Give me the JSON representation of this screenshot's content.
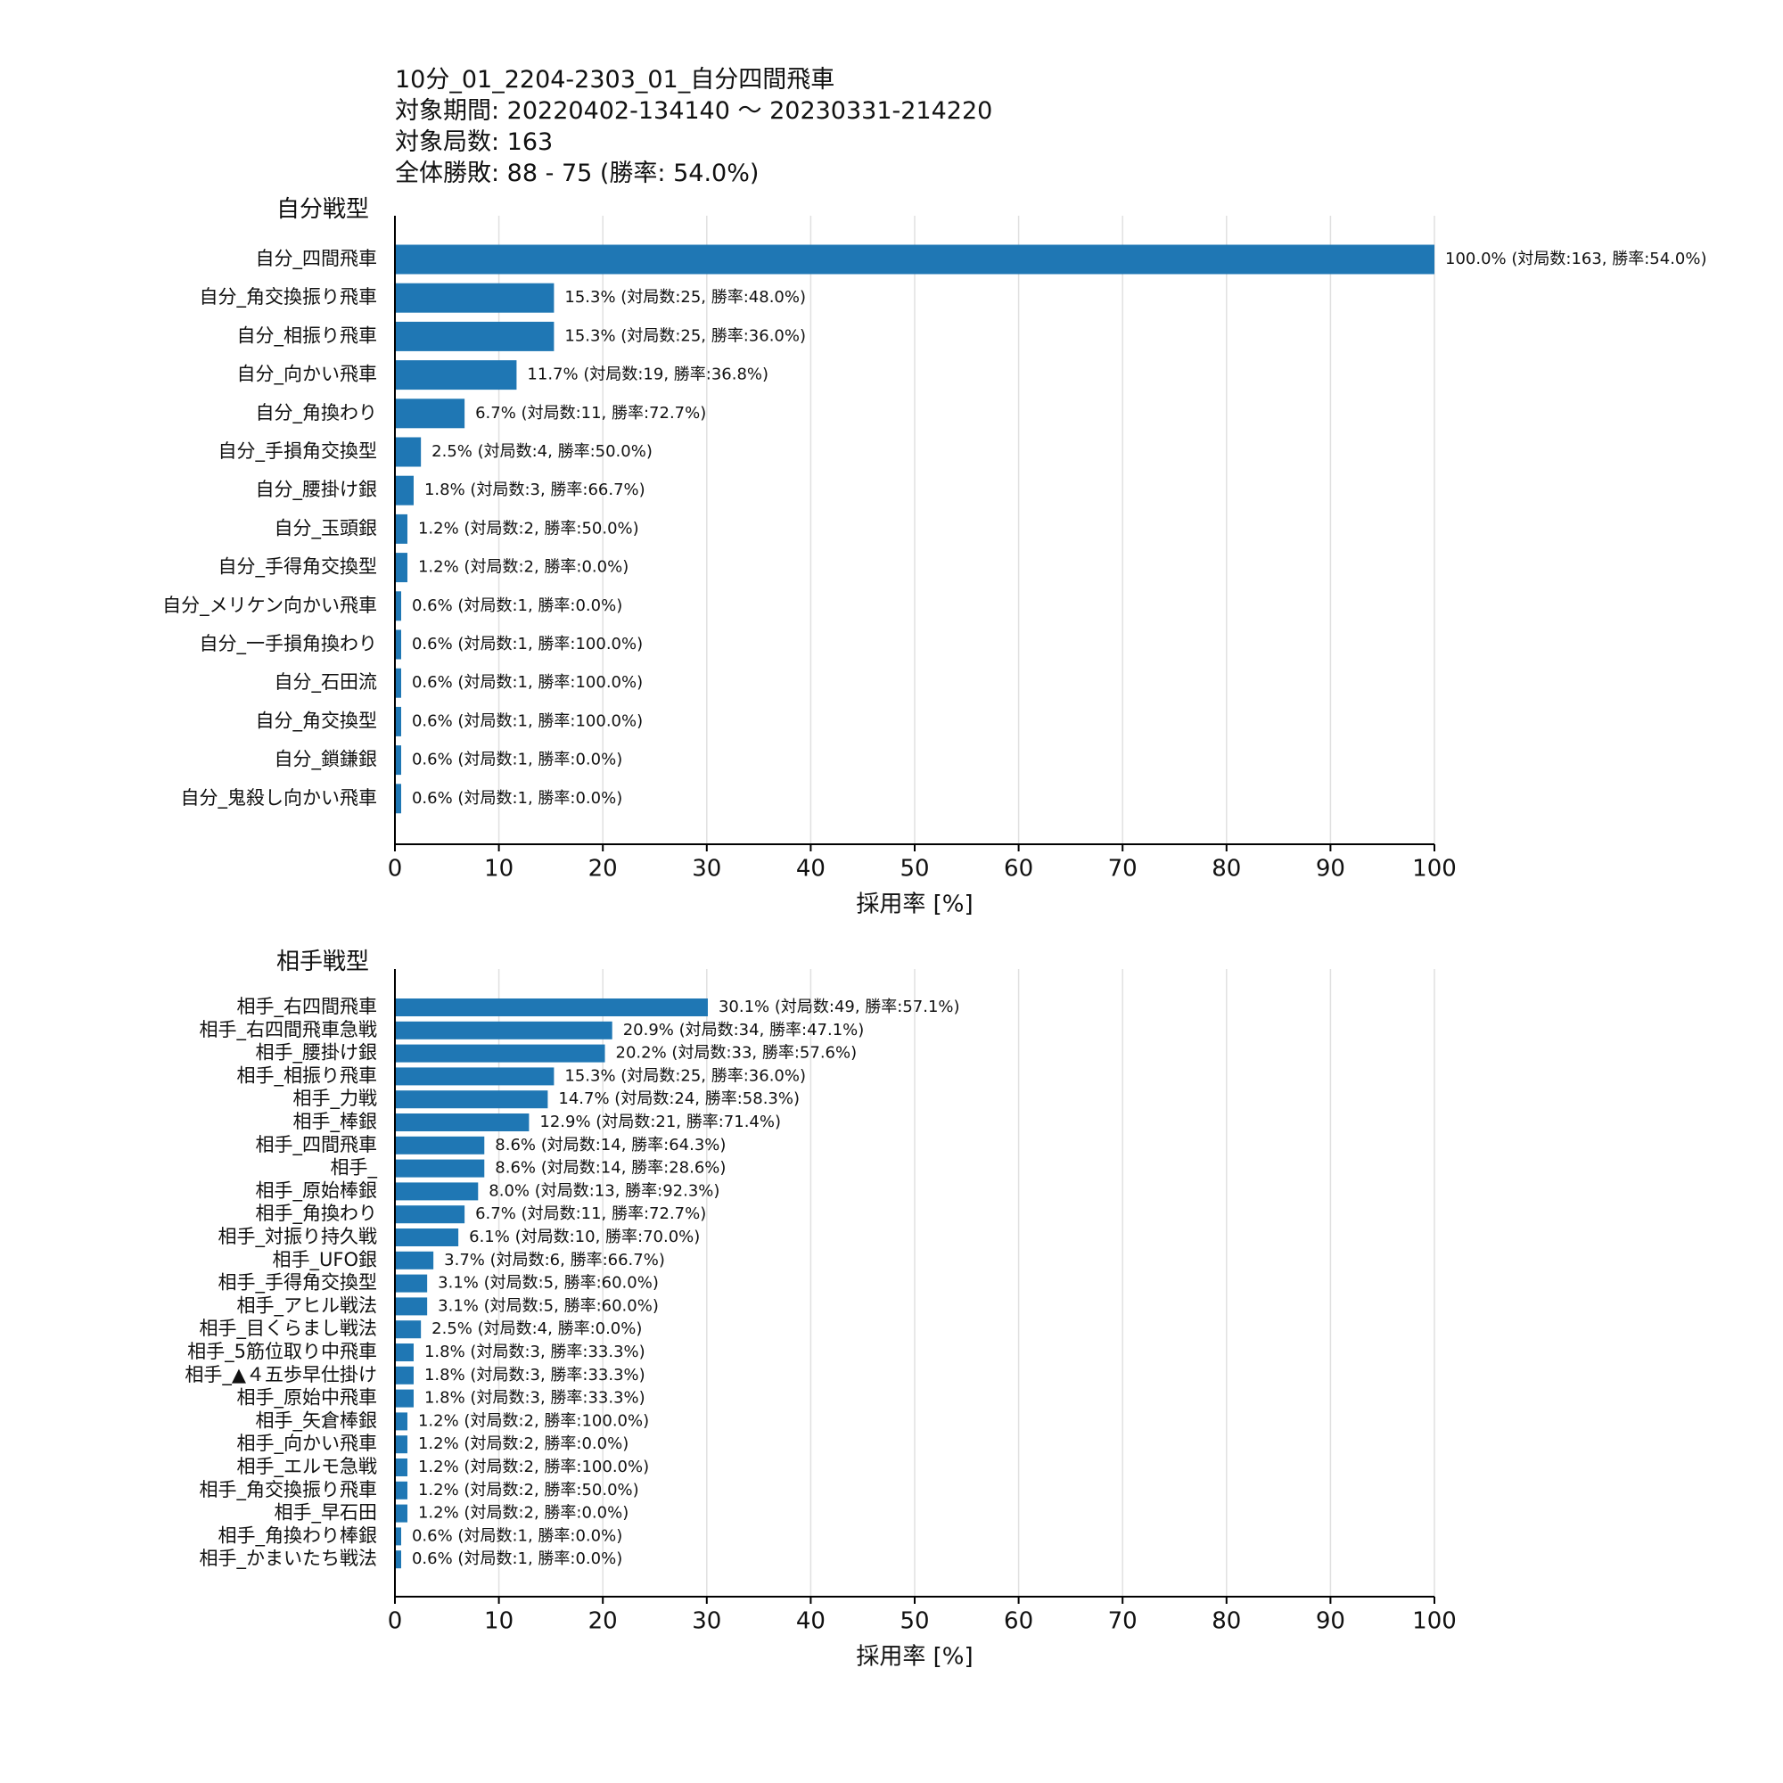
{
  "header": {
    "line1": "10分_01_2204-2303_01_自分四間飛車",
    "line2": "対象期間: 20220402-134140 〜 20230331-214220",
    "line3": "対象局数: 163",
    "line4": "全体勝敗: 88 - 75 (勝率: 54.0%)"
  },
  "colors": {
    "bar": "#1f77b4",
    "grid": "#e0e0e0",
    "axis": "#000000"
  },
  "chart_data": [
    {
      "type": "bar",
      "orientation": "horizontal",
      "title": "自分戦型",
      "xlabel": "採用率 [%]",
      "xlim": [
        0,
        100
      ],
      "xticks": [
        0,
        10,
        20,
        30,
        40,
        50,
        60,
        70,
        80,
        90,
        100
      ],
      "grid": "x",
      "categories": [
        "自分_四間飛車",
        "自分_角交換振り飛車",
        "自分_相振り飛車",
        "自分_向かい飛車",
        "自分_角換わり",
        "自分_手損角交換型",
        "自分_腰掛け銀",
        "自分_玉頭銀",
        "自分_手得角交換型",
        "自分_メリケン向かい飛車",
        "自分_一手損角換わり",
        "自分_石田流",
        "自分_角交換型",
        "自分_鎖鎌銀",
        "自分_鬼殺し向かい飛車"
      ],
      "values": [
        100.0,
        15.3,
        15.3,
        11.7,
        6.7,
        2.5,
        1.8,
        1.2,
        1.2,
        0.6,
        0.6,
        0.6,
        0.6,
        0.6,
        0.6
      ],
      "data_labels": [
        "100.0% (対局数:163, 勝率:54.0%)",
        "15.3% (対局数:25, 勝率:48.0%)",
        "15.3% (対局数:25, 勝率:36.0%)",
        "11.7% (対局数:19, 勝率:36.8%)",
        "6.7% (対局数:11, 勝率:72.7%)",
        "2.5% (対局数:4, 勝率:50.0%)",
        "1.8% (対局数:3, 勝率:66.7%)",
        "1.2% (対局数:2, 勝率:50.0%)",
        "1.2% (対局数:2, 勝率:0.0%)",
        "0.6% (対局数:1, 勝率:0.0%)",
        "0.6% (対局数:1, 勝率:100.0%)",
        "0.6% (対局数:1, 勝率:100.0%)",
        "0.6% (対局数:1, 勝率:100.0%)",
        "0.6% (対局数:1, 勝率:0.0%)",
        "0.6% (対局数:1, 勝率:0.0%)"
      ]
    },
    {
      "type": "bar",
      "orientation": "horizontal",
      "title": "相手戦型",
      "xlabel": "採用率 [%]",
      "xlim": [
        0,
        100
      ],
      "xticks": [
        0,
        10,
        20,
        30,
        40,
        50,
        60,
        70,
        80,
        90,
        100
      ],
      "grid": "x",
      "categories": [
        "相手_右四間飛車",
        "相手_右四間飛車急戦",
        "相手_腰掛け銀",
        "相手_相振り飛車",
        "相手_力戦",
        "相手_棒銀",
        "相手_四間飛車",
        "相手_",
        "相手_原始棒銀",
        "相手_角換わり",
        "相手_対振り持久戦",
        "相手_UFO銀",
        "相手_手得角交換型",
        "相手_アヒル戦法",
        "相手_目くらまし戦法",
        "相手_5筋位取り中飛車",
        "相手_▲４五歩早仕掛け",
        "相手_原始中飛車",
        "相手_矢倉棒銀",
        "相手_向かい飛車",
        "相手_エルモ急戦",
        "相手_角交換振り飛車",
        "相手_早石田",
        "相手_角換わり棒銀",
        "相手_かまいたち戦法"
      ],
      "values": [
        30.1,
        20.9,
        20.2,
        15.3,
        14.7,
        12.9,
        8.6,
        8.6,
        8.0,
        6.7,
        6.1,
        3.7,
        3.1,
        3.1,
        2.5,
        1.8,
        1.8,
        1.8,
        1.2,
        1.2,
        1.2,
        1.2,
        1.2,
        0.6,
        0.6
      ],
      "data_labels": [
        "30.1% (対局数:49, 勝率:57.1%)",
        "20.9% (対局数:34, 勝率:47.1%)",
        "20.2% (対局数:33, 勝率:57.6%)",
        "15.3% (対局数:25, 勝率:36.0%)",
        "14.7% (対局数:24, 勝率:58.3%)",
        "12.9% (対局数:21, 勝率:71.4%)",
        "8.6% (対局数:14, 勝率:64.3%)",
        "8.6% (対局数:14, 勝率:28.6%)",
        "8.0% (対局数:13, 勝率:92.3%)",
        "6.7% (対局数:11, 勝率:72.7%)",
        "6.1% (対局数:10, 勝率:70.0%)",
        "3.7% (対局数:6, 勝率:66.7%)",
        "3.1% (対局数:5, 勝率:60.0%)",
        "3.1% (対局数:5, 勝率:60.0%)",
        "2.5% (対局数:4, 勝率:0.0%)",
        "1.8% (対局数:3, 勝率:33.3%)",
        "1.8% (対局数:3, 勝率:33.3%)",
        "1.8% (対局数:3, 勝率:33.3%)",
        "1.2% (対局数:2, 勝率:100.0%)",
        "1.2% (対局数:2, 勝率:0.0%)",
        "1.2% (対局数:2, 勝率:100.0%)",
        "1.2% (対局数:2, 勝率:50.0%)",
        "1.2% (対局数:2, 勝率:0.0%)",
        "0.6% (対局数:1, 勝率:0.0%)",
        "0.6% (対局数:1, 勝率:0.0%)"
      ]
    }
  ]
}
